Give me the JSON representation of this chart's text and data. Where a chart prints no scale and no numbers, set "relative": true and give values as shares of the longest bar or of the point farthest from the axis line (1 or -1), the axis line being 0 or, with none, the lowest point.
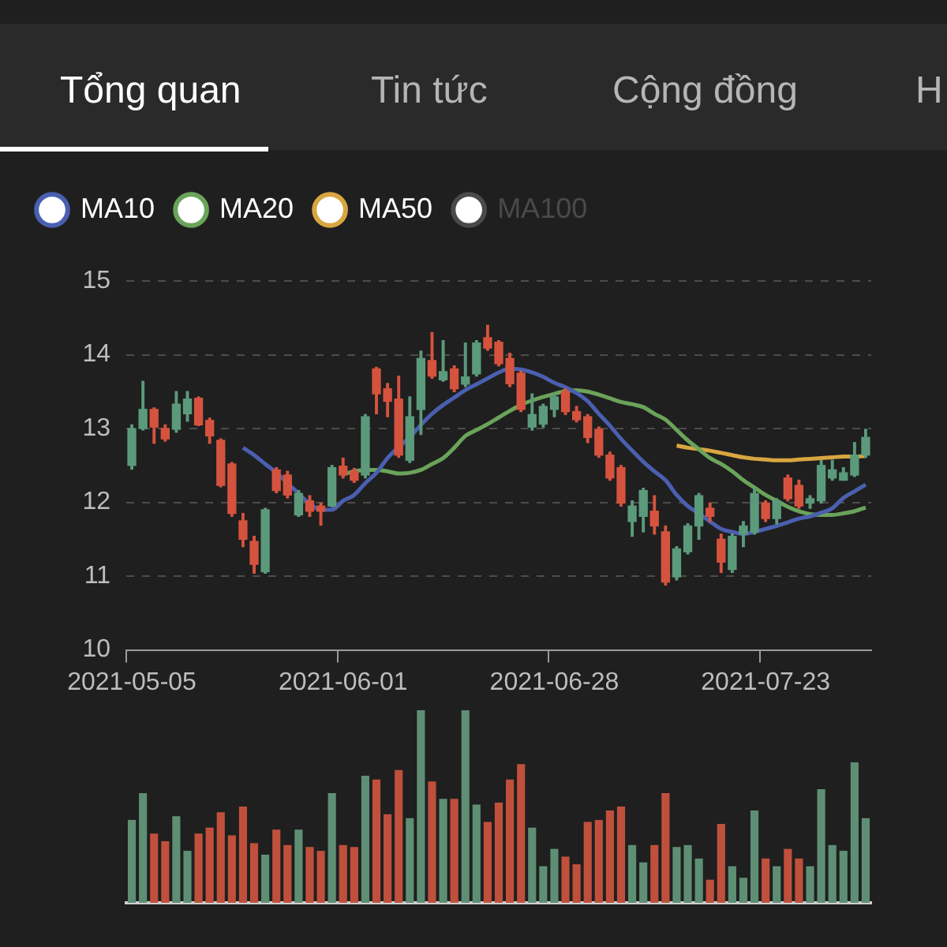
{
  "chart_data": [
    {
      "type": "candlestick",
      "annotations": [
        "Tổng quan",
        "Tin tức",
        "Cộng đồng",
        "H"
      ],
      "categories": [
        "2021-05-05",
        null,
        null,
        null,
        null,
        null,
        null,
        null,
        null,
        null,
        null,
        null,
        null,
        null,
        null,
        null,
        null,
        null,
        null,
        "2021-06-01",
        null,
        null,
        null,
        null,
        null,
        null,
        null,
        null,
        null,
        null,
        null,
        null,
        null,
        null,
        null,
        null,
        null,
        null,
        "2021-06-28",
        null,
        null,
        null,
        null,
        null,
        null,
        null,
        null,
        null,
        null,
        null,
        null,
        null,
        null,
        null,
        null,
        null,
        null,
        "2021-07-23",
        null,
        null,
        null,
        null,
        null,
        null,
        null,
        null,
        null
      ],
      "ohlc": [
        [
          12.5,
          13.05,
          12.45,
          13.0
        ],
        [
          13.0,
          13.64,
          12.98,
          13.26
        ],
        [
          13.26,
          13.28,
          12.8,
          13.02
        ],
        [
          13.0,
          13.05,
          12.83,
          12.86
        ],
        [
          12.99,
          13.5,
          12.95,
          13.33
        ],
        [
          13.2,
          13.5,
          13.1,
          13.4
        ],
        [
          13.41,
          13.43,
          13.04,
          13.05
        ],
        [
          13.11,
          13.14,
          12.8,
          12.9
        ],
        [
          12.84,
          12.86,
          12.21,
          12.23
        ],
        [
          12.52,
          12.54,
          11.81,
          11.85
        ],
        [
          11.75,
          11.85,
          11.4,
          11.5
        ],
        [
          11.47,
          11.54,
          11.04,
          11.16
        ],
        [
          11.06,
          11.92,
          11.04,
          11.9
        ],
        [
          12.44,
          12.47,
          12.13,
          12.16
        ],
        [
          12.37,
          12.42,
          12.06,
          12.1
        ],
        [
          11.83,
          12.16,
          11.81,
          12.12
        ],
        [
          12.02,
          12.09,
          11.81,
          11.88
        ],
        [
          11.95,
          11.99,
          11.69,
          11.88
        ],
        [
          11.95,
          12.5,
          11.94,
          12.47
        ],
        [
          12.49,
          12.6,
          12.33,
          12.37
        ],
        [
          12.42,
          12.46,
          12.27,
          12.3
        ],
        [
          12.37,
          13.19,
          12.33,
          13.16
        ],
        [
          13.81,
          13.83,
          13.2,
          13.47
        ],
        [
          13.54,
          13.61,
          13.16,
          13.37
        ],
        [
          13.4,
          13.71,
          12.61,
          12.64
        ],
        [
          12.57,
          13.43,
          12.54,
          13.16
        ],
        [
          13.26,
          14.05,
          12.92,
          13.95
        ],
        [
          13.92,
          14.3,
          13.68,
          13.71
        ],
        [
          13.66,
          14.19,
          13.64,
          13.77
        ],
        [
          13.81,
          13.85,
          13.5,
          13.54
        ],
        [
          13.6,
          14.16,
          13.57,
          13.7
        ],
        [
          13.74,
          14.19,
          13.71,
          14.16
        ],
        [
          14.23,
          14.4,
          14.06,
          14.09
        ],
        [
          14.17,
          14.19,
          13.85,
          13.88
        ],
        [
          13.95,
          14.02,
          13.57,
          13.61
        ],
        [
          13.75,
          13.78,
          13.23,
          13.26
        ],
        [
          13.02,
          13.47,
          12.98,
          13.19
        ],
        [
          13.06,
          13.33,
          13.02,
          13.3
        ],
        [
          13.26,
          13.47,
          13.16,
          13.43
        ],
        [
          13.5,
          13.54,
          13.19,
          13.23
        ],
        [
          13.23,
          13.3,
          13.09,
          13.12
        ],
        [
          13.16,
          13.19,
          12.81,
          12.88
        ],
        [
          12.99,
          13.02,
          12.61,
          12.64
        ],
        [
          12.64,
          12.68,
          12.3,
          12.33
        ],
        [
          12.47,
          12.5,
          11.95,
          11.99
        ],
        [
          11.74,
          12.02,
          11.54,
          11.95
        ],
        [
          11.81,
          12.19,
          11.6,
          12.16
        ],
        [
          11.88,
          12.09,
          11.57,
          11.68
        ],
        [
          11.6,
          11.68,
          10.88,
          10.92
        ],
        [
          10.99,
          11.4,
          10.95,
          11.37
        ],
        [
          11.33,
          11.71,
          11.3,
          11.68
        ],
        [
          11.68,
          12.12,
          11.5,
          12.09
        ],
        [
          11.92,
          11.99,
          11.74,
          11.81
        ],
        [
          11.5,
          11.57,
          11.05,
          11.19
        ],
        [
          11.09,
          11.57,
          11.05,
          11.54
        ],
        [
          11.57,
          11.74,
          11.4,
          11.68
        ],
        [
          11.6,
          12.19,
          11.57,
          12.12
        ],
        [
          11.99,
          12.02,
          11.74,
          11.78
        ],
        [
          11.78,
          12.05,
          11.71,
          12.02
        ],
        [
          12.33,
          12.37,
          12.02,
          12.05
        ],
        [
          12.23,
          12.3,
          11.92,
          11.95
        ],
        [
          11.99,
          12.09,
          11.92,
          12.05
        ],
        [
          12.02,
          12.57,
          11.99,
          12.5
        ],
        [
          12.33,
          12.57,
          12.3,
          12.44
        ],
        [
          12.3,
          12.47,
          12.3,
          12.4
        ],
        [
          12.37,
          12.81,
          12.35,
          12.64
        ],
        [
          12.64,
          12.99,
          12.61,
          12.88
        ]
      ],
      "colors": [
        "#5b9a7b",
        "#5b9a7b",
        "#d5533e",
        "#d5533e",
        "#5b9a7b",
        "#5b9a7b",
        "#d5533e",
        "#d5533e",
        "#d5533e",
        "#d5533e",
        "#d5533e",
        "#d5533e",
        "#5b9a7b",
        "#d5533e",
        "#d5533e",
        "#5b9a7b",
        "#d5533e",
        "#d5533e",
        "#5b9a7b",
        "#d5533e",
        "#d5533e",
        "#5b9a7b",
        "#d5533e",
        "#d5533e",
        "#d5533e",
        "#5b9a7b",
        "#5b9a7b",
        "#d5533e",
        "#5b9a7b",
        "#d5533e",
        "#5b9a7b",
        "#5b9a7b",
        "#d5533e",
        "#d5533e",
        "#d5533e",
        "#d5533e",
        "#5b9a7b",
        "#5b9a7b",
        "#5b9a7b",
        "#d5533e",
        "#d5533e",
        "#d5533e",
        "#d5533e",
        "#d5533e",
        "#d5533e",
        "#5b9a7b",
        "#5b9a7b",
        "#d5533e",
        "#d5533e",
        "#5b9a7b",
        "#5b9a7b",
        "#5b9a7b",
        "#d5533e",
        "#d5533e",
        "#5b9a7b",
        "#5b9a7b",
        "#5b9a7b",
        "#d5533e",
        "#5b9a7b",
        "#d5533e",
        "#d5533e",
        "#5b9a7b",
        "#5b9a7b",
        "#5b9a7b",
        "#5b9a7b",
        "#5b9a7b",
        "#5b9a7b"
      ],
      "series": [
        {
          "name": "MA10",
          "type": "line",
          "color": "#4a5fb0",
          "values": [
            null,
            null,
            null,
            null,
            null,
            null,
            null,
            null,
            null,
            null,
            12.74,
            12.64,
            12.52,
            12.4,
            12.26,
            12.12,
            11.98,
            11.9,
            11.9,
            12.02,
            12.1,
            12.26,
            12.4,
            12.6,
            12.75,
            12.88,
            13.05,
            13.2,
            13.32,
            13.42,
            13.52,
            13.6,
            13.68,
            13.76,
            13.81,
            13.8,
            13.76,
            13.7,
            13.62,
            13.56,
            13.48,
            13.37,
            13.2,
            13.04,
            12.86,
            12.7,
            12.55,
            12.42,
            12.3,
            12.1,
            11.95,
            11.85,
            11.74,
            11.64,
            11.6,
            11.57,
            11.6,
            11.64,
            11.68,
            11.73,
            11.78,
            11.81,
            11.86,
            11.92,
            12.06,
            12.15,
            12.24
          ]
        },
        {
          "name": "MA20",
          "type": "line",
          "color": "#6aa35a",
          "values": [
            null,
            null,
            null,
            null,
            null,
            null,
            null,
            null,
            null,
            null,
            null,
            null,
            null,
            null,
            null,
            null,
            null,
            null,
            null,
            12.38,
            12.42,
            12.44,
            12.44,
            12.42,
            12.39,
            12.4,
            12.44,
            12.52,
            12.6,
            12.74,
            12.9,
            12.98,
            13.06,
            13.15,
            13.24,
            13.32,
            13.38,
            13.43,
            13.47,
            13.51,
            13.52,
            13.5,
            13.46,
            13.41,
            13.36,
            13.33,
            13.29,
            13.2,
            13.12,
            12.98,
            12.84,
            12.72,
            12.6,
            12.52,
            12.42,
            12.3,
            12.2,
            12.1,
            12.02,
            11.94,
            11.88,
            11.84,
            11.83,
            11.83,
            11.85,
            11.88,
            11.93
          ]
        },
        {
          "name": "MA50",
          "type": "line",
          "color": "#d8a640",
          "values": [
            null,
            null,
            null,
            null,
            null,
            null,
            null,
            null,
            null,
            null,
            null,
            null,
            null,
            null,
            null,
            null,
            null,
            null,
            null,
            null,
            null,
            null,
            null,
            null,
            null,
            null,
            null,
            null,
            null,
            null,
            null,
            null,
            null,
            null,
            null,
            null,
            null,
            null,
            null,
            null,
            null,
            null,
            null,
            null,
            null,
            null,
            null,
            null,
            null,
            12.77,
            12.74,
            12.72,
            12.7,
            12.67,
            12.64,
            12.61,
            12.59,
            12.58,
            12.57,
            12.57,
            12.58,
            12.59,
            12.6,
            12.61,
            12.62,
            12.62,
            12.63
          ]
        },
        {
          "name": "MA100",
          "type": "line",
          "color": "#4a4a4a",
          "values": [
            null,
            null,
            null,
            null,
            null,
            null,
            null,
            null,
            null,
            null,
            null,
            null,
            null,
            null,
            null,
            null,
            null,
            null,
            null,
            null,
            null,
            null,
            null,
            null,
            null,
            null,
            null,
            null,
            null,
            null,
            null,
            null,
            null,
            null,
            null,
            null,
            null,
            null,
            null,
            null,
            null,
            null,
            null,
            null,
            null,
            null,
            null,
            null,
            null,
            null,
            null,
            null,
            null,
            null,
            null,
            null,
            null,
            null,
            null,
            null,
            null,
            null,
            null,
            null,
            null,
            null,
            null
          ]
        }
      ],
      "ylim": [
        10,
        15
      ],
      "yticks": [
        10,
        11,
        12,
        13,
        14,
        15
      ],
      "grid": "y",
      "legend": "top left",
      "marker": "none"
    },
    {
      "type": "bar",
      "relative": true,
      "tick_labels": false,
      "categories": [
        null,
        null,
        null,
        null,
        null,
        null,
        null,
        null,
        null,
        null,
        null,
        null,
        null,
        null,
        null,
        null,
        null,
        null,
        null,
        null,
        null,
        null,
        null,
        null,
        null,
        null,
        null,
        null,
        null,
        null,
        null,
        null,
        null,
        null,
        null,
        null,
        null,
        null,
        null,
        null,
        null,
        null,
        null,
        null,
        null,
        null,
        null,
        null,
        null,
        null,
        null,
        null,
        null,
        null,
        null,
        null,
        null,
        null,
        null,
        null,
        null,
        null,
        null,
        null,
        null,
        null,
        null
      ],
      "values": [
        0.43,
        0.57,
        0.36,
        0.32,
        0.45,
        0.27,
        0.36,
        0.39,
        0.47,
        0.35,
        0.5,
        0.31,
        0.25,
        0.38,
        0.3,
        0.38,
        0.29,
        0.27,
        0.57,
        0.3,
        0.29,
        0.66,
        0.64,
        0.46,
        0.69,
        0.44,
        1,
        0.63,
        0.54,
        0.54,
        1,
        0.51,
        0.42,
        0.52,
        0.64,
        0.72,
        0.39,
        0.19,
        0.28,
        0.24,
        0.2,
        0.42,
        0.43,
        0.48,
        0.5,
        0.3,
        0.21,
        0.3,
        0.57,
        0.29,
        0.3,
        0.23,
        0.12,
        0.41,
        0.19,
        0.13,
        0.48,
        0.23,
        0.19,
        0.28,
        0.23,
        0.19,
        0.59,
        0.3,
        0.27,
        0.73,
        0.44
      ],
      "colors": [
        "#5e8f74",
        "#5e8f74",
        "#c0503c",
        "#c0503c",
        "#5e8f74",
        "#5e8f74",
        "#c0503c",
        "#c0503c",
        "#c0503c",
        "#c0503c",
        "#c0503c",
        "#c0503c",
        "#5e8f74",
        "#c0503c",
        "#c0503c",
        "#5e8f74",
        "#c0503c",
        "#c0503c",
        "#5e8f74",
        "#c0503c",
        "#c0503c",
        "#5e8f74",
        "#c0503c",
        "#c0503c",
        "#c0503c",
        "#5e8f74",
        "#5e8f74",
        "#c0503c",
        "#5e8f74",
        "#c0503c",
        "#5e8f74",
        "#5e8f74",
        "#c0503c",
        "#c0503c",
        "#c0503c",
        "#c0503c",
        "#5e8f74",
        "#5e8f74",
        "#5e8f74",
        "#c0503c",
        "#c0503c",
        "#c0503c",
        "#c0503c",
        "#c0503c",
        "#c0503c",
        "#5e8f74",
        "#5e8f74",
        "#c0503c",
        "#c0503c",
        "#5e8f74",
        "#5e8f74",
        "#5e8f74",
        "#c0503c",
        "#c0503c",
        "#5e8f74",
        "#5e8f74",
        "#5e8f74",
        "#c0503c",
        "#5e8f74",
        "#c0503c",
        "#c0503c",
        "#5e8f74",
        "#5e8f74",
        "#5e8f74",
        "#5e8f74",
        "#5e8f74",
        "#5e8f74"
      ]
    }
  ]
}
